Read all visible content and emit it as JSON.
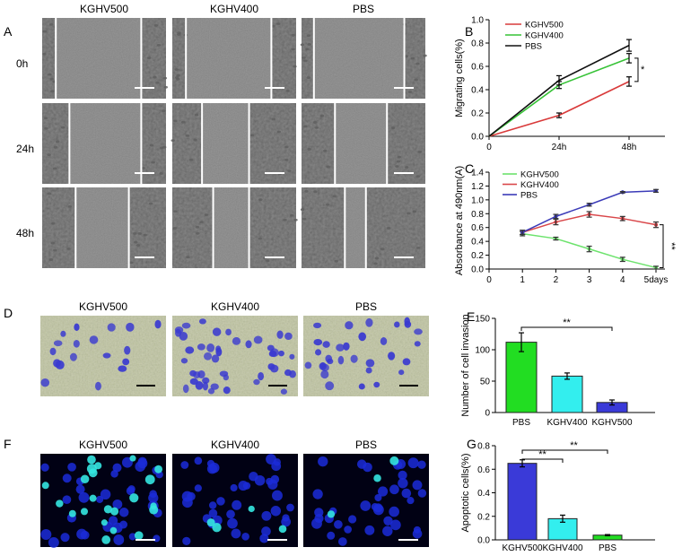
{
  "panel_letters": {
    "A": "A",
    "B": "B",
    "C": "C",
    "D": "D",
    "E": "E",
    "F": "F",
    "G": "G"
  },
  "colors": {
    "kghv500_line": "#d93a3a",
    "kghv400_line": "#36c236",
    "pbs_line": "#111111",
    "c_kghv500": "#6de36d",
    "c_kghv400": "#d9474a",
    "c_pbs": "#3b3bb8",
    "bar_green": "#22dd22",
    "bar_cyan": "#33eeee",
    "bar_blue": "#3a3ad8"
  },
  "panelA": {
    "column_labels": [
      "KGHV500",
      "KGHV400",
      "PBS"
    ],
    "row_labels": [
      "0h",
      "24h",
      "48h"
    ]
  },
  "panelD": {
    "column_labels": [
      "KGHV500",
      "KGHV400",
      "PBS"
    ]
  },
  "panelF": {
    "column_labels": [
      "KGHV500",
      "KGHV400",
      "PBS"
    ]
  },
  "chart_data": [
    {
      "id": "B",
      "type": "line",
      "ylabel": "Migrating cells(%)",
      "x": [
        "0",
        "24h",
        "48h"
      ],
      "ylim": [
        0,
        1.0
      ],
      "yticks": [
        "0.0",
        "0.2",
        "0.4",
        "0.6",
        "0.8",
        "1.0"
      ],
      "series": [
        {
          "name": "KGHV500",
          "values": [
            0,
            0.18,
            0.47
          ],
          "errors": [
            0,
            0.02,
            0.04
          ]
        },
        {
          "name": "KGHV400",
          "values": [
            0,
            0.44,
            0.67
          ],
          "errors": [
            0,
            0.03,
            0.04
          ]
        },
        {
          "name": "PBS",
          "values": [
            0,
            0.48,
            0.78
          ],
          "errors": [
            0,
            0.04,
            0.05
          ]
        }
      ],
      "annotation": "*"
    },
    {
      "id": "C",
      "type": "line",
      "ylabel": "Absorbance at 490nm(A)",
      "x": [
        1,
        2,
        3,
        4,
        5
      ],
      "xticks": [
        "0",
        "1",
        "2",
        "3",
        "4",
        "5days"
      ],
      "xlim": [
        0,
        5
      ],
      "ylim": [
        0,
        1.4
      ],
      "yticks": [
        "0.0",
        "0.2",
        "0.4",
        "0.6",
        "0.8",
        "1.0",
        "1.2",
        "1.4"
      ],
      "series": [
        {
          "name": "KGHV500",
          "values": [
            0.51,
            0.44,
            0.29,
            0.14,
            0.02
          ],
          "errors": [
            0.03,
            0.02,
            0.04,
            0.03,
            0.02
          ]
        },
        {
          "name": "KGHV400",
          "values": [
            0.53,
            0.68,
            0.79,
            0.73,
            0.64
          ],
          "errors": [
            0.03,
            0.04,
            0.04,
            0.03,
            0.04
          ]
        },
        {
          "name": "PBS",
          "values": [
            0.53,
            0.76,
            0.93,
            1.11,
            1.13
          ],
          "errors": [
            0.03,
            0.03,
            0.02,
            0.01,
            0.02
          ]
        }
      ],
      "annotation": "**"
    },
    {
      "id": "E",
      "type": "bar",
      "ylabel": "Number of cell invasion",
      "categories": [
        "PBS",
        "KGHV400",
        "KGHV500"
      ],
      "values": [
        112,
        58,
        16
      ],
      "errors": [
        15,
        5,
        4
      ],
      "ylim": [
        0,
        150
      ],
      "yticks": [
        "0",
        "50",
        "100",
        "150"
      ],
      "annotation": "**"
    },
    {
      "id": "G",
      "type": "bar",
      "ylabel": "Apoptotic cells(%)",
      "categories": [
        "KGHV500",
        "KGHV400",
        "PBS"
      ],
      "values": [
        0.65,
        0.18,
        0.04
      ],
      "errors": [
        0.03,
        0.03,
        0.005
      ],
      "ylim": [
        0,
        0.8
      ],
      "yticks": [
        "0.0",
        "0.2",
        "0.4",
        "0.6",
        "0.8"
      ],
      "annotations": [
        "**",
        "**"
      ]
    }
  ]
}
